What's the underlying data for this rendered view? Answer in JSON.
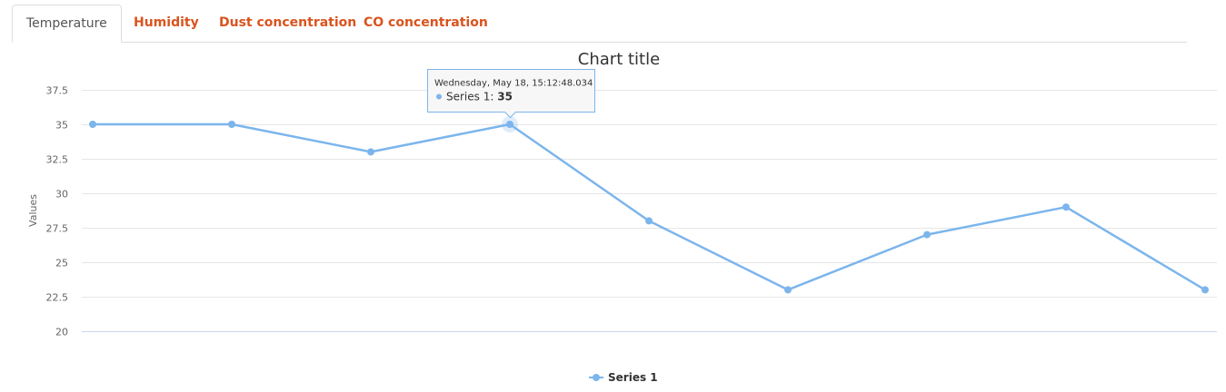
{
  "tabs": [
    {
      "label": "Temperature",
      "active": true
    },
    {
      "label": "Humidity",
      "active": false
    },
    {
      "label": "Dust concentration",
      "active": false
    },
    {
      "label": "CO concentration",
      "active": false
    }
  ],
  "tooltip": {
    "date": "Wednesday, May 18, 15:12:48.034",
    "series_label": "Series 1: ",
    "value": "35"
  },
  "colors": {
    "series": "#7cb5ec",
    "tab_link": "#d9541e",
    "tab_active": "#555555"
  },
  "chart_data": {
    "type": "line",
    "title": "Chart title",
    "ylabel": "Values",
    "xlabel": "",
    "ylim": [
      20,
      37.5
    ],
    "y_ticks": [
      "20",
      "22.5",
      "25",
      "27.5",
      "30",
      "32.5",
      "35",
      "37.5"
    ],
    "grid": true,
    "legend_position": "bottom-center",
    "series": [
      {
        "name": "Series 1",
        "values": [
          35,
          35,
          33,
          35,
          28,
          23,
          27,
          29,
          23
        ]
      }
    ],
    "highlighted_index": 3
  }
}
